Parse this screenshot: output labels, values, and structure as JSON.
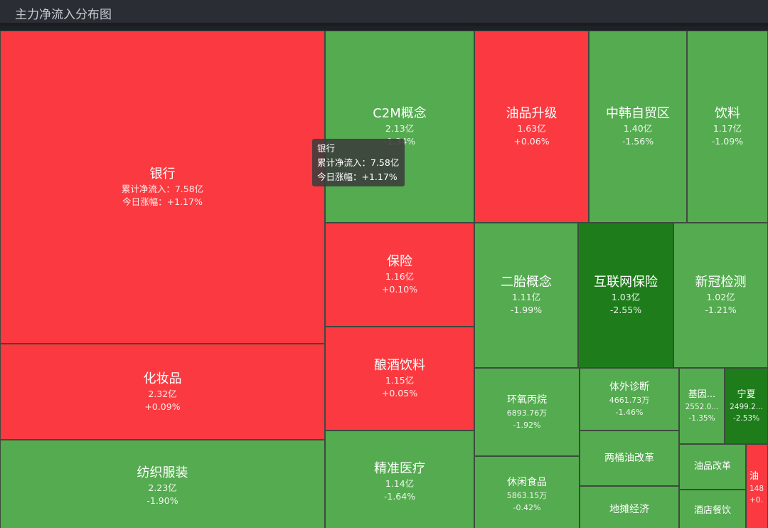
{
  "title": "主力净流入分布图",
  "labels": {
    "net_inflow": "累计净流入：",
    "change": "今日涨幅："
  },
  "colors": {
    "up": "#fa3a40",
    "down": "#55ab50",
    "down_strong": "#1e7d1a"
  },
  "tooltip": {
    "name": "银行",
    "net_inflow": "累计净流入：7.58亿",
    "change": "今日涨幅：+1.17%"
  },
  "chart_data": {
    "type": "treemap",
    "title": "主力净流入分布图",
    "items": [
      {
        "name": "银行",
        "value": "7.58亿",
        "change": "+1.17%"
      },
      {
        "name": "化妆品",
        "value": "2.32亿",
        "change": "+0.09%"
      },
      {
        "name": "纺织服装",
        "value": "2.23亿",
        "change": "-1.90%"
      },
      {
        "name": "C2M概念",
        "value": "2.13亿",
        "change": "-1.34%"
      },
      {
        "name": "油品升级",
        "value": "1.63亿",
        "change": "+0.06%"
      },
      {
        "name": "中韩自贸区",
        "value": "1.40亿",
        "change": "-1.56%"
      },
      {
        "name": "饮料",
        "value": "1.17亿",
        "change": "-1.09%"
      },
      {
        "name": "保险",
        "value": "1.16亿",
        "change": "+0.10%"
      },
      {
        "name": "酿酒饮料",
        "value": "1.15亿",
        "change": "+0.05%"
      },
      {
        "name": "精准医疗",
        "value": "1.14亿",
        "change": "-1.64%"
      },
      {
        "name": "二胎概念",
        "value": "1.11亿",
        "change": "-1.99%"
      },
      {
        "name": "互联网保险",
        "value": "1.03亿",
        "change": "-2.55%"
      },
      {
        "name": "新冠检测",
        "value": "1.02亿",
        "change": "-1.21%"
      },
      {
        "name": "环氧丙烷",
        "value": "6893.76万",
        "change": "-1.92%"
      },
      {
        "name": "体外诊断",
        "value": "4661.73万",
        "change": "-1.46%"
      },
      {
        "name": "基因...",
        "value": "2552.0...",
        "change": "-1.35%"
      },
      {
        "name": "宁夏",
        "value": "2499.2...",
        "change": "-2.53%"
      },
      {
        "name": "休闲食品",
        "value": "5863.15万",
        "change": "-0.42%"
      },
      {
        "name": "两桶油改革",
        "value": "",
        "change": ""
      },
      {
        "name": "油品改革",
        "value": "",
        "change": ""
      },
      {
        "name": "地摊经济",
        "value": "",
        "change": ""
      },
      {
        "name": "酒店餐饮",
        "value": "",
        "change": ""
      },
      {
        "name": "油",
        "value": "148",
        "change": "+0."
      }
    ]
  }
}
